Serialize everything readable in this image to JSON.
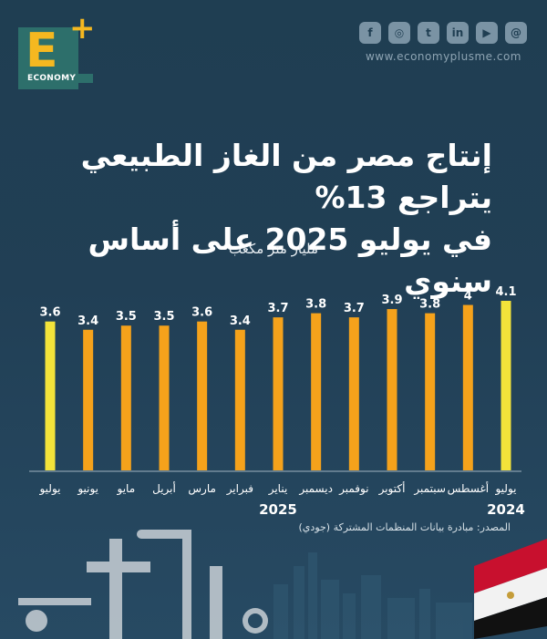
{
  "brand": {
    "logo_letter": "E",
    "logo_plus": "+",
    "logo_word": "ECONOMY",
    "website": "www.economyplusme.com"
  },
  "social_icons": [
    "facebook-icon",
    "instagram-icon",
    "twitter-icon",
    "linkedin-icon",
    "youtube-icon",
    "threads-icon"
  ],
  "social_glyphs": [
    "f",
    "◎",
    "t",
    "in",
    "▶",
    "@"
  ],
  "title_line1": "إنتاج مصر من الغاز الطبيعي يتراجع 13%",
  "title_line2": "في يوليو 2025 على أساس سنوي",
  "source": "المصدر: مبادرة بيانات المنظمات المشتركة (جودي)",
  "colors": {
    "highlight": "#f3e33a",
    "bar": "#f5a21b",
    "background": "#213f55"
  },
  "chart_data": {
    "type": "bar",
    "ylabel": "مليار متر مكعب",
    "categories": [
      "يوليو",
      "أغسطس",
      "سبتمبر",
      "أكتوبر",
      "نوفمبر",
      "ديسمبر",
      "يناير",
      "فبراير",
      "مارس",
      "أبريل",
      "مايو",
      "يونيو",
      "يوليو"
    ],
    "values": [
      4.1,
      4,
      3.8,
      3.9,
      3.7,
      3.8,
      3.7,
      3.4,
      3.6,
      3.5,
      3.5,
      3.4,
      3.6
    ],
    "value_labels": [
      "4.1",
      "4",
      "3.8",
      "3.9",
      "3.7",
      "3.8",
      "3.7",
      "3.4",
      "3.6",
      "3.5",
      "3.5",
      "3.4",
      "3.6"
    ],
    "highlighted": [
      0,
      12
    ],
    "year_labels": [
      {
        "index": 0,
        "text": "2024"
      },
      {
        "index": 6,
        "text": "2025"
      }
    ],
    "ylim": [
      0,
      4.1
    ],
    "grid": false
  }
}
